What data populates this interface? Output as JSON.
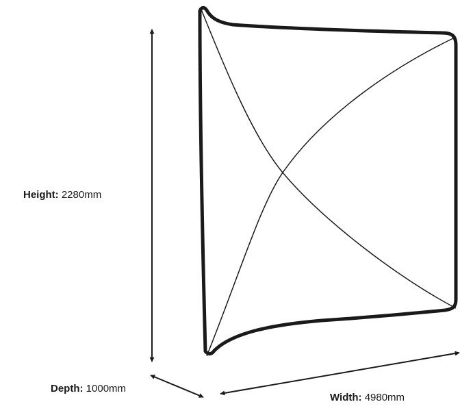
{
  "dimensions": {
    "height": {
      "label": "Height:",
      "value": "2280mm"
    },
    "depth": {
      "label": "Depth:",
      "value": "1000mm"
    },
    "width": {
      "label": "Width:",
      "value": "4980mm"
    }
  },
  "colors": {
    "stroke": "#1a1a1a",
    "background": "#ffffff"
  }
}
